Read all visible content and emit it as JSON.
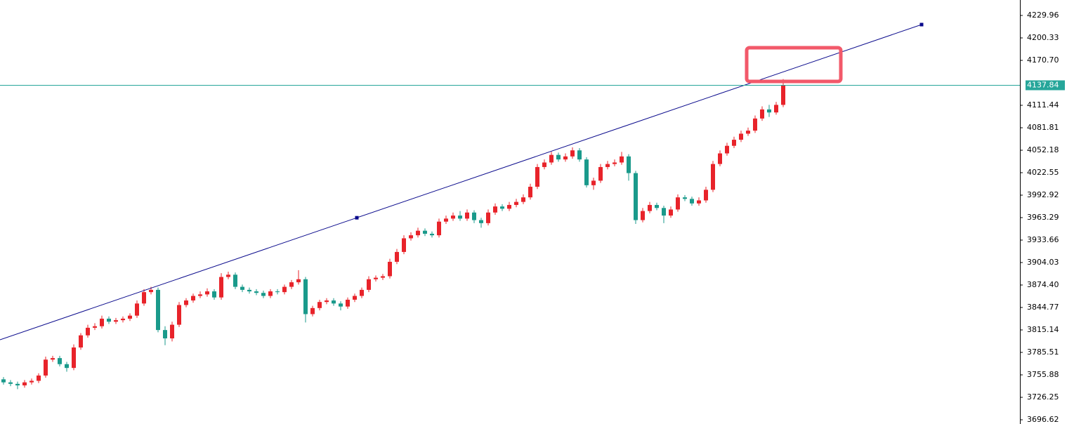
{
  "chart_data": {
    "type": "candlestick",
    "open": [
      3750,
      3746,
      3744,
      3742,
      3746,
      3748,
      3755,
      3776,
      3778,
      3770,
      3765,
      3792,
      3808,
      3818,
      3820,
      3830,
      3826,
      3828,
      3830,
      3834,
      3850,
      3865,
      3868,
      3815,
      3804,
      3822,
      3848,
      3854,
      3860,
      3862,
      3866,
      3858,
      3885,
      3888,
      3872,
      3868,
      3866,
      3864,
      3860,
      3866,
      3865,
      3872,
      3878,
      3882,
      3836,
      3844,
      3852,
      3854,
      3850,
      3846,
      3855,
      3860,
      3868,
      3882,
      3884,
      3886,
      3905,
      3918,
      3936,
      3940,
      3946,
      3942,
      3940,
      3958,
      3962,
      3966,
      3962,
      3970,
      3960,
      3956,
      3970,
      3978,
      3975,
      3980,
      3984,
      3990,
      4004,
      4030,
      4036,
      4046,
      4040,
      4044,
      4052,
      4040,
      4006,
      4012,
      4030,
      4034,
      4036,
      4044,
      4022,
      3960,
      3972,
      3980,
      3976,
      3966,
      3974,
      3990,
      3988,
      3982,
      3986,
      4000,
      4034,
      4048,
      4058,
      4066,
      4074,
      4078,
      4094,
      4106,
      4102,
      4112
    ],
    "high": [
      3753,
      3749,
      3747,
      3749,
      3751,
      3758,
      3780,
      3781,
      3781,
      3773,
      3796,
      3811,
      3822,
      3824,
      3834,
      3833,
      3831,
      3833,
      3837,
      3854,
      3869,
      3872,
      3871,
      3820,
      3826,
      3852,
      3857,
      3863,
      3866,
      3870,
      3869,
      3890,
      3892,
      3891,
      3875,
      3871,
      3869,
      3867,
      3869,
      3869,
      3875,
      3881,
      3894,
      3885,
      3847,
      3855,
      3857,
      3857,
      3853,
      3858,
      3863,
      3871,
      3886,
      3887,
      3889,
      3909,
      3922,
      3940,
      3944,
      3950,
      3949,
      3945,
      3962,
      3966,
      3970,
      3972,
      3974,
      3973,
      3963,
      3974,
      3982,
      3981,
      3984,
      3988,
      3994,
      4008,
      4034,
      4040,
      4050,
      4049,
      4048,
      4056,
      4055,
      4043,
      4016,
      4034,
      4038,
      4040,
      4050,
      4047,
      4025,
      3976,
      3984,
      3983,
      3979,
      3978,
      3994,
      3993,
      3991,
      3990,
      4004,
      4038,
      4052,
      4062,
      4070,
      4078,
      4082,
      4098,
      4110,
      4112,
      4116,
      4146
    ],
    "low": [
      3743,
      3741,
      3737,
      3739,
      3743,
      3745,
      3752,
      3773,
      3767,
      3760,
      3762,
      3789,
      3805,
      3815,
      3817,
      3823,
      3823,
      3825,
      3827,
      3831,
      3847,
      3862,
      3812,
      3795,
      3800,
      3819,
      3845,
      3851,
      3857,
      3859,
      3855,
      3855,
      3882,
      3869,
      3865,
      3863,
      3861,
      3857,
      3857,
      3862,
      3862,
      3869,
      3875,
      3825,
      3833,
      3841,
      3849,
      3847,
      3841,
      3843,
      3852,
      3857,
      3865,
      3879,
      3881,
      3883,
      3902,
      3915,
      3933,
      3937,
      3939,
      3937,
      3937,
      3955,
      3959,
      3959,
      3959,
      3956,
      3950,
      3953,
      3967,
      3972,
      3972,
      3977,
      3981,
      3987,
      4001,
      4027,
      4033,
      4037,
      4037,
      4041,
      4037,
      4003,
      4000,
      4009,
      4027,
      4031,
      4033,
      4012,
      3955,
      3957,
      3969,
      3973,
      3956,
      3963,
      3971,
      3985,
      3979,
      3979,
      3983,
      3997,
      4031,
      4045,
      4055,
      4063,
      4071,
      4075,
      4091,
      4096,
      4099,
      4109
    ],
    "close": [
      3746,
      3744,
      3742,
      3746,
      3748,
      3755,
      3776,
      3778,
      3770,
      3765,
      3792,
      3808,
      3818,
      3820,
      3830,
      3826,
      3828,
      3830,
      3834,
      3850,
      3865,
      3868,
      3815,
      3804,
      3822,
      3848,
      3854,
      3860,
      3862,
      3866,
      3858,
      3885,
      3888,
      3872,
      3868,
      3866,
      3864,
      3860,
      3866,
      3865,
      3872,
      3878,
      3882,
      3836,
      3844,
      3852,
      3854,
      3850,
      3846,
      3855,
      3860,
      3868,
      3882,
      3884,
      3886,
      3905,
      3918,
      3936,
      3940,
      3946,
      3942,
      3940,
      3958,
      3962,
      3966,
      3962,
      3970,
      3960,
      3956,
      3970,
      3978,
      3975,
      3980,
      3984,
      3990,
      4004,
      4030,
      4036,
      4046,
      4040,
      4044,
      4052,
      4040,
      4006,
      4012,
      4030,
      4034,
      4036,
      4044,
      4022,
      3960,
      3972,
      3980,
      3976,
      3966,
      3974,
      3990,
      3988,
      3982,
      3986,
      4000,
      4034,
      4048,
      4058,
      4066,
      4074,
      4078,
      4094,
      4106,
      4102,
      4112,
      4137.84
    ],
    "up_color": "#e8232a",
    "down_color": "#1a9a8b",
    "ylim": [
      3691.06,
      4250.33
    ],
    "yticks": [
      4229.96,
      4200.33,
      {
        "value": 4170.7,
        "label": "4170.70"
      },
      4111.44,
      4081.81,
      4052.18,
      4022.55,
      3992.92,
      3963.29,
      3933.66,
      3904.03,
      {
        "value": 3874.4,
        "label": "3874.40"
      },
      3844.77,
      3815.14,
      3785.51,
      3755.88,
      3726.25,
      3696.62
    ],
    "last_price": {
      "value": 4137.84,
      "color": "#26a69a"
    },
    "trendline": {
      "x": [
        -0.5,
        50.3,
        130.7
      ],
      "y": [
        3802.2,
        3963.1,
        4217.9
      ],
      "color": "#0a0a8c"
    }
  }
}
